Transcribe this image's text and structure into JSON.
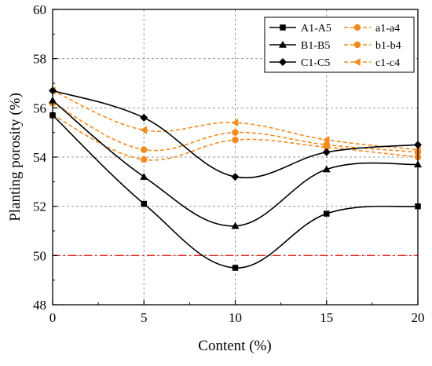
{
  "chart_data": {
    "type": "line",
    "title": "",
    "xlabel": "Content (%)",
    "ylabel": "Planting porosity (%)",
    "xlim": [
      0,
      20
    ],
    "ylim": [
      48,
      60
    ],
    "x_ticks": [
      0,
      5,
      10,
      15,
      20
    ],
    "y_ticks": [
      48,
      50,
      52,
      54,
      56,
      58,
      60
    ],
    "grid": true,
    "legend_position": "top-right",
    "x": [
      0,
      5,
      10,
      15,
      20
    ],
    "series": [
      {
        "name": "A1-A5",
        "values": [
          55.7,
          52.1,
          49.5,
          51.7,
          52.0
        ],
        "marker": "square",
        "line": "solid",
        "color": "#000000"
      },
      {
        "name": "B1-B5",
        "values": [
          56.3,
          53.2,
          51.2,
          53.5,
          53.7
        ],
        "marker": "triangle",
        "line": "solid",
        "color": "#000000"
      },
      {
        "name": "C1-C5",
        "values": [
          56.7,
          55.6,
          53.2,
          54.2,
          54.5
        ],
        "marker": "diamond",
        "line": "solid",
        "color": "#000000"
      },
      {
        "name": "a1-a4",
        "values": [
          55.7,
          53.9,
          54.7,
          54.4,
          54.0
        ],
        "marker": "circle",
        "line": "dashed",
        "color": "#F28C1E"
      },
      {
        "name": "b1-b4",
        "values": [
          56.2,
          54.3,
          55.0,
          54.5,
          54.2
        ],
        "marker": "circle",
        "line": "dashed",
        "color": "#F28C1E"
      },
      {
        "name": "c1-c4",
        "values": [
          56.7,
          55.1,
          55.4,
          54.7,
          54.3
        ],
        "marker": "left-triangle",
        "line": "dashed",
        "color": "#F28C1E"
      }
    ],
    "reference_line": {
      "y": 50,
      "color": "#E8201A",
      "style": "dash-dot"
    }
  }
}
